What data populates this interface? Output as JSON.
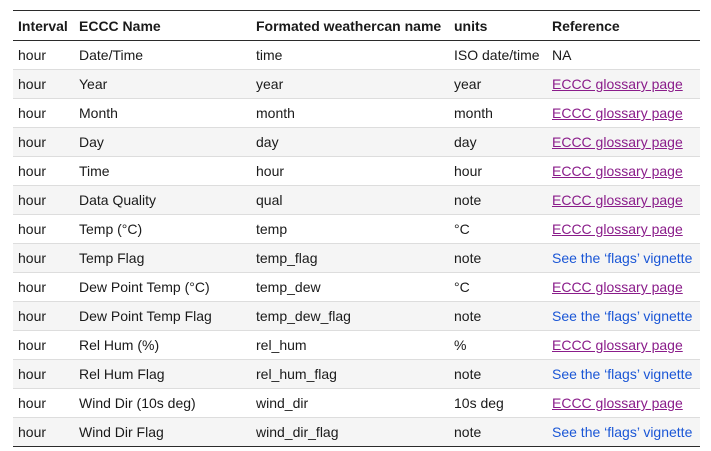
{
  "table": {
    "headers": [
      "Interval",
      "ECCC Name",
      "Formated weathercan name",
      "units",
      "Reference"
    ],
    "rows": [
      {
        "interval": "hour",
        "eccc": "Date/Time",
        "wc": "time",
        "units": "ISO date/time",
        "ref": "NA",
        "ref_type": "text"
      },
      {
        "interval": "hour",
        "eccc": "Year",
        "wc": "year",
        "units": "year",
        "ref": "ECCC glossary page",
        "ref_type": "glossary"
      },
      {
        "interval": "hour",
        "eccc": "Month",
        "wc": "month",
        "units": "month",
        "ref": "ECCC glossary page",
        "ref_type": "glossary"
      },
      {
        "interval": "hour",
        "eccc": "Day",
        "wc": "day",
        "units": "day",
        "ref": "ECCC glossary page",
        "ref_type": "glossary"
      },
      {
        "interval": "hour",
        "eccc": "Time",
        "wc": "hour",
        "units": "hour",
        "ref": "ECCC glossary page",
        "ref_type": "glossary"
      },
      {
        "interval": "hour",
        "eccc": "Data Quality",
        "wc": "qual",
        "units": "note",
        "ref": "ECCC glossary page",
        "ref_type": "glossary"
      },
      {
        "interval": "hour",
        "eccc": "Temp (°C)",
        "wc": "temp",
        "units": "°C",
        "ref": "ECCC glossary page",
        "ref_type": "glossary"
      },
      {
        "interval": "hour",
        "eccc": "Temp Flag",
        "wc": "temp_flag",
        "units": "note",
        "ref": "See the ‘flags’ vignette",
        "ref_type": "vignette"
      },
      {
        "interval": "hour",
        "eccc": "Dew Point Temp (°C)",
        "wc": "temp_dew",
        "units": "°C",
        "ref": "ECCC glossary page",
        "ref_type": "glossary"
      },
      {
        "interval": "hour",
        "eccc": "Dew Point Temp Flag",
        "wc": "temp_dew_flag",
        "units": "note",
        "ref": "See the ‘flags’ vignette",
        "ref_type": "vignette"
      },
      {
        "interval": "hour",
        "eccc": "Rel Hum (%)",
        "wc": "rel_hum",
        "units": "%",
        "ref": "ECCC glossary page",
        "ref_type": "glossary"
      },
      {
        "interval": "hour",
        "eccc": "Rel Hum Flag",
        "wc": "rel_hum_flag",
        "units": "note",
        "ref": "See the ‘flags’ vignette",
        "ref_type": "vignette"
      },
      {
        "interval": "hour",
        "eccc": "Wind Dir (10s deg)",
        "wc": "wind_dir",
        "units": "10s deg",
        "ref": "ECCC glossary page",
        "ref_type": "glossary"
      },
      {
        "interval": "hour",
        "eccc": "Wind Dir Flag",
        "wc": "wind_dir_flag",
        "units": "note",
        "ref": "See the ‘flags’ vignette",
        "ref_type": "vignette"
      }
    ]
  },
  "colors": {
    "visited_link": "#8a1c8a",
    "link": "#1a56d6",
    "stripe": "#f5f5f5",
    "rule": "#2b2b2b"
  }
}
